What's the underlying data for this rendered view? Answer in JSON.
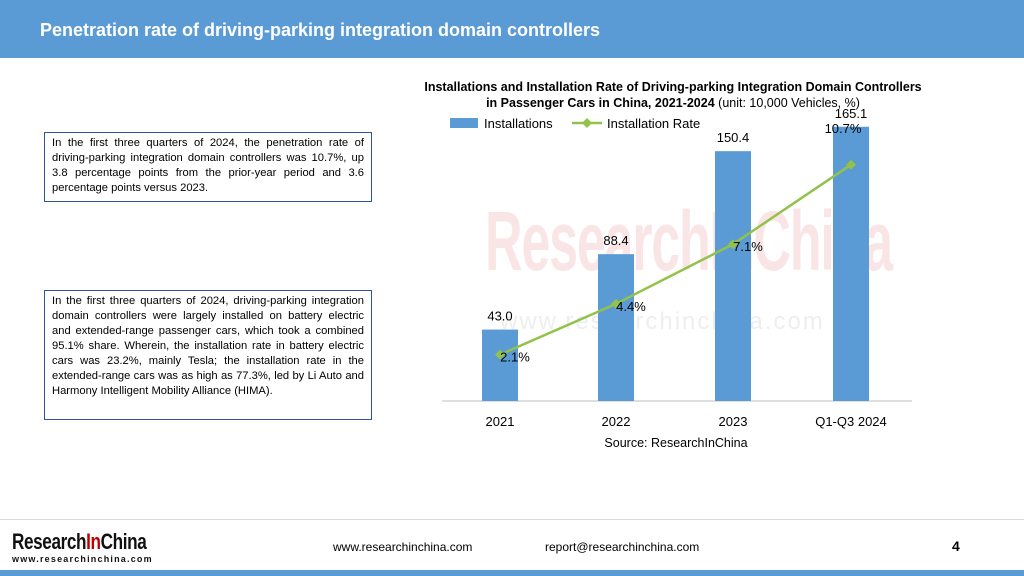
{
  "header": {
    "title": "Penetration rate of driving-parking integration domain controllers"
  },
  "text_boxes": {
    "box1": "In the first three quarters of 2024, the penetration rate of driving-parking integration domain controllers was 10.7%, up 3.8 percentage points from the prior-year period and 3.6 percentage points versus 2023.",
    "box2": "In the first three quarters of 2024, driving-parking integration domain controllers were largely installed on battery electric and extended-range passenger cars, which took a combined 95.1% share. Wherein, the installation rate in battery electric cars was 23.2%, mainly Tesla; the installation rate in the extended-range cars was as high as 77.3%, led by Li Auto and Harmony Intelligent Mobility Alliance (HIMA)."
  },
  "chart_data": {
    "type": "bar",
    "title": "Installations and Installation Rate of Driving-parking Integration Domain Controllers in Passenger Cars in China, 2021-2024",
    "title_unit": "(unit: 10,000 Vehicles, %)",
    "categories": [
      "2021",
      "2022",
      "2023",
      "Q1-Q3 2024"
    ],
    "series": [
      {
        "name": "Installations",
        "type": "bar",
        "values": [
          43.0,
          88.4,
          150.4,
          165.1
        ],
        "labels": [
          "43.0",
          "88.4",
          "150.4",
          "165.1"
        ],
        "color": "#5b9bd5"
      },
      {
        "name": "Installation Rate",
        "type": "line",
        "values": [
          2.1,
          4.4,
          7.1,
          10.7
        ],
        "labels": [
          "2.1%",
          "4.4%",
          "7.1%",
          "10.7%"
        ],
        "color": "#92c24a"
      }
    ],
    "ylim": [
      0,
      180
    ],
    "y2lim": [
      0,
      12
    ],
    "legend": "top-left",
    "grid": false,
    "source": "Source: ResearchInChina"
  },
  "watermark": {
    "main": "ResearchInChina",
    "sub": "www.researchinchina.com"
  },
  "footer": {
    "logo_part1": "Research",
    "logo_part2": "In",
    "logo_part3": "China",
    "logo_sub": "www.researchinchina.com",
    "website": "www.researchinchina.com",
    "email": "report@researchinchina.com",
    "page": "4"
  }
}
